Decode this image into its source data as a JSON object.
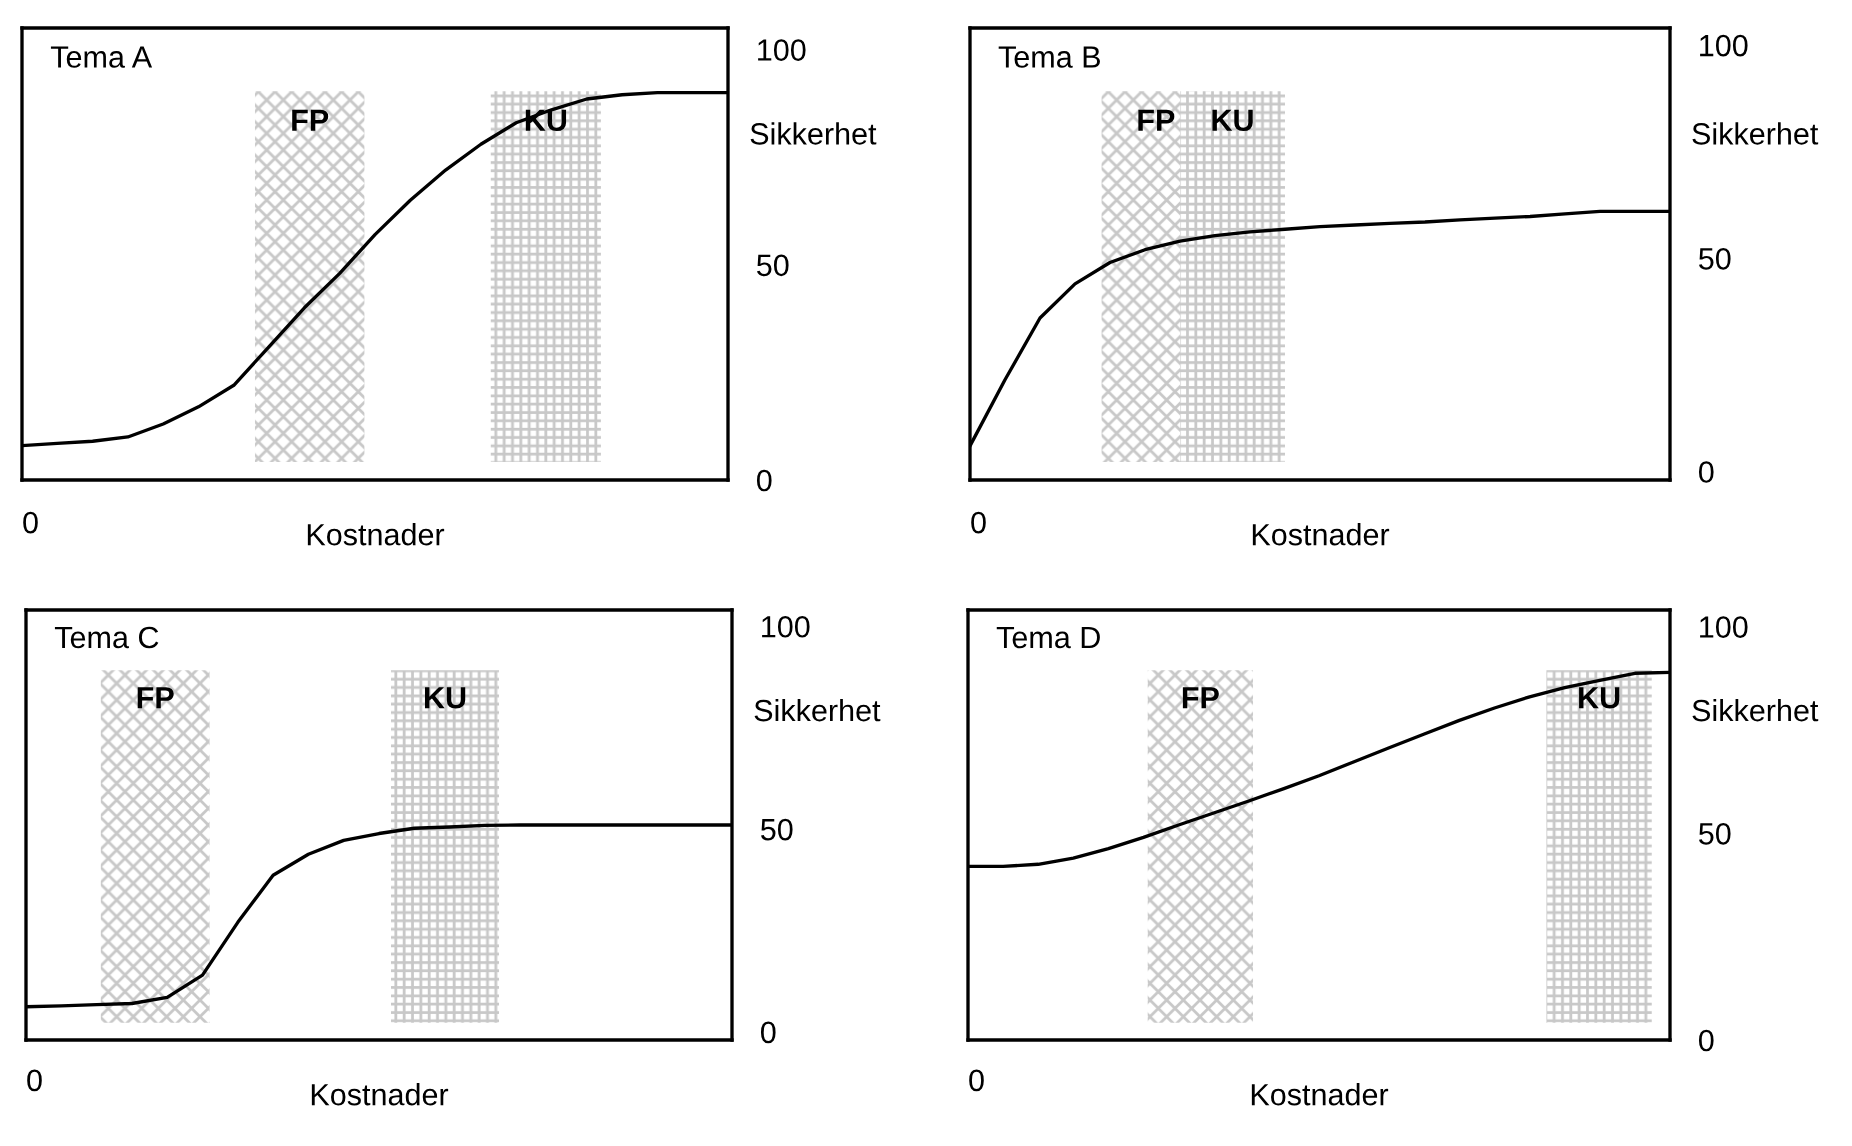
{
  "chart_data": [
    {
      "type": "line",
      "xlabel": "Kostnader",
      "ylabel": "Sikkerhet",
      "annotations": [
        "Tema A",
        "0",
        "FP",
        "KU"
      ],
      "categories": [
        null,
        null,
        null,
        null,
        null,
        null,
        null,
        null,
        null,
        null,
        null,
        null,
        null,
        null,
        null,
        null,
        null,
        null,
        null,
        null,
        null
      ],
      "ylim": [
        0,
        105
      ],
      "yticks": [
        0,
        50,
        100
      ],
      "grid": false,
      "marker": "none",
      "line_style": "solid",
      "series": [
        {
          "color": "#000000",
          "values": [
            8,
            8.5,
            9,
            10,
            13,
            17,
            22,
            31,
            40,
            48,
            57,
            65,
            72,
            78,
            83,
            86,
            88.5,
            89.5,
            90,
            90,
            90
          ]
        }
      ]
    },
    {
      "type": "line",
      "xlabel": "Kostnader",
      "ylabel": "Sikkerhet",
      "annotations": [
        "Tema B",
        "0",
        "FP",
        "KU"
      ],
      "categories": [
        null,
        null,
        null,
        null,
        null,
        null,
        null,
        null,
        null,
        null,
        null,
        null,
        null,
        null,
        null,
        null,
        null,
        null,
        null,
        null,
        null
      ],
      "ylim": [
        -2,
        104
      ],
      "yticks": [
        0,
        50,
        100
      ],
      "grid": false,
      "marker": "none",
      "line_style": "solid",
      "series": [
        {
          "color": "#000000",
          "values": [
            6,
            21.5,
            36,
            44,
            49,
            52,
            54,
            55.3,
            56.2,
            56.8,
            57.4,
            57.8,
            58.2,
            58.5,
            59,
            59.4,
            59.8,
            60.4,
            61,
            61,
            61
          ]
        }
      ]
    },
    {
      "type": "line",
      "xlabel": "Kostnader",
      "ylabel": "Sikkerhet",
      "annotations": [
        "Tema C",
        "0",
        "FP",
        "KU"
      ],
      "categories": [
        null,
        null,
        null,
        null,
        null,
        null,
        null,
        null,
        null,
        null,
        null,
        null,
        null,
        null,
        null,
        null,
        null,
        null,
        null,
        null,
        null
      ],
      "ylim": [
        -2,
        104
      ],
      "yticks": [
        0,
        50,
        100
      ],
      "grid": false,
      "marker": "none",
      "line_style": "solid",
      "series": [
        {
          "color": "#000000",
          "values": [
            6.2,
            6.4,
            6.7,
            7,
            8.5,
            14,
            27,
            38.6,
            43.8,
            47.2,
            48.9,
            50.2,
            50.5,
            50.9,
            51,
            51,
            51,
            51,
            51,
            51,
            51
          ]
        }
      ]
    },
    {
      "type": "line",
      "xlabel": "Kostnader",
      "ylabel": "Sikkerhet",
      "annotations": [
        "Tema D",
        "0",
        "FP",
        "KU"
      ],
      "categories": [
        null,
        null,
        null,
        null,
        null,
        null,
        null,
        null,
        null,
        null,
        null,
        null,
        null,
        null,
        null,
        null,
        null,
        null,
        null,
        null,
        null
      ],
      "ylim": [
        0,
        104
      ],
      "yticks": [
        0,
        50,
        100
      ],
      "grid": false,
      "marker": "none",
      "line_style": "solid",
      "series": [
        {
          "color": "#000000",
          "values": [
            42,
            42,
            42.5,
            44,
            46.3,
            49,
            52,
            54.9,
            57.8,
            60.8,
            63.9,
            67.3,
            70.7,
            74,
            77.3,
            80.3,
            83,
            85.2,
            87,
            88.7,
            88.9
          ]
        }
      ]
    }
  ]
}
